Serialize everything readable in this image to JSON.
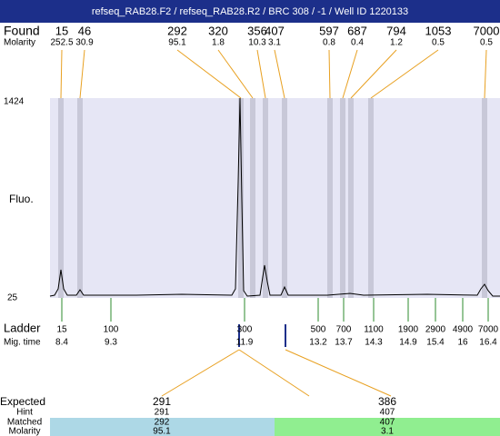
{
  "header": {
    "title": "refseq_RAB28.F2 / refseq_RAB28.R2 / BRC 308 / -1 / Well ID 1220133"
  },
  "found": {
    "label": "Found",
    "molarity_label": "Molarity",
    "sizes": [
      "15",
      "46",
      "292",
      "320",
      "356",
      "407",
      "597",
      "687",
      "794",
      "1053",
      "7000"
    ],
    "molarities": [
      "252.5",
      "30.9",
      "95.1",
      "1.8",
      "10.3",
      "3.1",
      "0.8",
      "0.4",
      "1.2",
      "0.5",
      "0.5"
    ]
  },
  "plot": {
    "y_max_label": "1424",
    "y_min_label": "25",
    "y_axis_label": "Fluo."
  },
  "ladder": {
    "label": "Ladder",
    "time_label": "Mig. time",
    "sizes": [
      "15",
      "100",
      "300",
      "500",
      "700",
      "1100",
      "1900",
      "2900",
      "4900",
      "7000"
    ],
    "times": [
      "8.4",
      "9.3",
      "11.9",
      "13.2",
      "13.7",
      "14.3",
      "14.9",
      "15.4",
      "16",
      "16.4"
    ]
  },
  "table": {
    "row_labels": [
      "Expected",
      "Hint",
      "Matched",
      "Molarity"
    ],
    "columns": [
      {
        "expected": "291",
        "hint": "291",
        "matched": "292",
        "molarity": "95.1"
      },
      {
        "expected": "386",
        "hint": "407",
        "matched": "407",
        "molarity": "3.1"
      }
    ]
  }
}
